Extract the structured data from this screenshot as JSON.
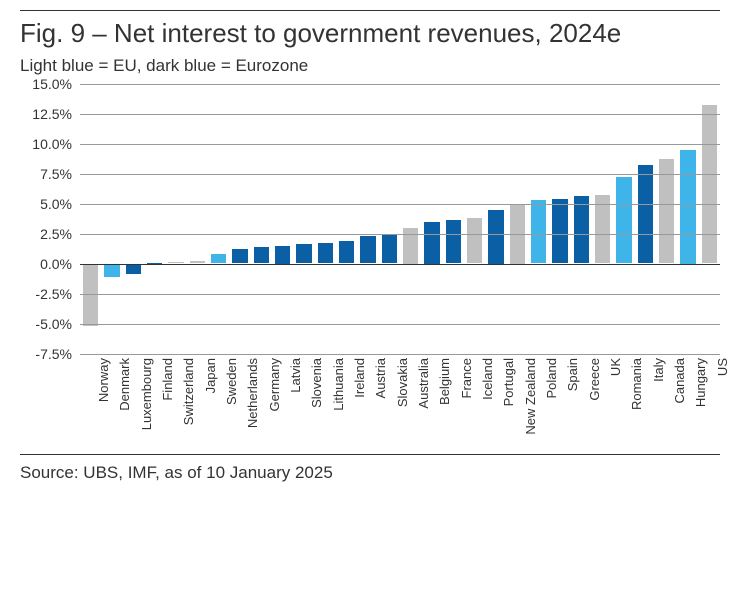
{
  "title": "Fig. 9 – Net interest to government revenues, 2024e",
  "subtitle": "Light blue = EU, dark blue = Eurozone",
  "source": "Source: UBS, IMF, as of 10 January 2025",
  "chart": {
    "type": "bar",
    "y": {
      "min": -7.5,
      "max": 15.0,
      "step": 2.5,
      "ticks": [
        -7.5,
        -5.0,
        -2.5,
        0.0,
        2.5,
        5.0,
        7.5,
        10.0,
        12.5,
        15.0
      ],
      "suffix": "%",
      "decimals": 1,
      "label_fontsize": 14,
      "grid_color": "#999999",
      "zero_color": "#333333"
    },
    "colors": {
      "other": "#c0c0c0",
      "eu": "#3fb4e8",
      "eurozone": "#0a5fa5"
    },
    "bar_width_ratio": 0.72,
    "background_color": "#ffffff",
    "title_fontsize": 26,
    "subtitle_fontsize": 17,
    "axis_fontsize": 14,
    "xlabel_fontsize": 13,
    "data": [
      {
        "label": "Norway",
        "value": -5.2,
        "group": "other"
      },
      {
        "label": "Denmark",
        "value": -1.1,
        "group": "eu"
      },
      {
        "label": "Luxembourg",
        "value": -0.9,
        "group": "eurozone"
      },
      {
        "label": "Finland",
        "value": 0.05,
        "group": "eurozone"
      },
      {
        "label": "Switzerland",
        "value": 0.1,
        "group": "other"
      },
      {
        "label": "Japan",
        "value": 0.2,
        "group": "other"
      },
      {
        "label": "Sweden",
        "value": 0.8,
        "group": "eu"
      },
      {
        "label": "Netherlands",
        "value": 1.2,
        "group": "eurozone"
      },
      {
        "label": "Germany",
        "value": 1.4,
        "group": "eurozone"
      },
      {
        "label": "Latvia",
        "value": 1.5,
        "group": "eurozone"
      },
      {
        "label": "Slovenia",
        "value": 1.6,
        "group": "eurozone"
      },
      {
        "label": "Lithuania",
        "value": 1.7,
        "group": "eurozone"
      },
      {
        "label": "Ireland",
        "value": 1.9,
        "group": "eurozone"
      },
      {
        "label": "Austria",
        "value": 2.3,
        "group": "eurozone"
      },
      {
        "label": "Slovakia",
        "value": 2.4,
        "group": "eurozone"
      },
      {
        "label": "Australia",
        "value": 3.0,
        "group": "other"
      },
      {
        "label": "Belgium",
        "value": 3.5,
        "group": "eurozone"
      },
      {
        "label": "France",
        "value": 3.6,
        "group": "eurozone"
      },
      {
        "label": "Iceland",
        "value": 3.8,
        "group": "other"
      },
      {
        "label": "Portugal",
        "value": 4.5,
        "group": "eurozone"
      },
      {
        "label": "New Zealand",
        "value": 5.0,
        "group": "other"
      },
      {
        "label": "Poland",
        "value": 5.3,
        "group": "eu"
      },
      {
        "label": "Spain",
        "value": 5.4,
        "group": "eurozone"
      },
      {
        "label": "Greece",
        "value": 5.6,
        "group": "eurozone"
      },
      {
        "label": "UK",
        "value": 5.7,
        "group": "other"
      },
      {
        "label": "Romania",
        "value": 7.2,
        "group": "eu"
      },
      {
        "label": "Italy",
        "value": 8.2,
        "group": "eurozone"
      },
      {
        "label": "Canada",
        "value": 8.7,
        "group": "other"
      },
      {
        "label": "Hungary",
        "value": 9.5,
        "group": "eu"
      },
      {
        "label": "US",
        "value": 13.2,
        "group": "other"
      }
    ]
  }
}
